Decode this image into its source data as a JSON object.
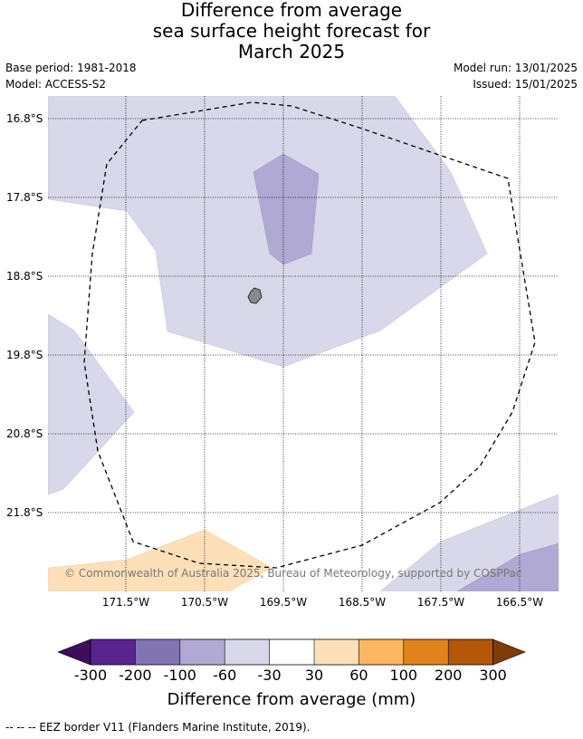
{
  "title": {
    "line1": "Difference from average",
    "line2": "sea surface height forecast for",
    "line3": "March 2025"
  },
  "meta": {
    "base_period": "Base period: 1981-2018",
    "model": "Model: ACCESS-S2",
    "model_run": "Model run: 13/01/2025",
    "issued": "Issued: 15/01/2025"
  },
  "map": {
    "lat_labels": [
      "16.8°S",
      "17.8°S",
      "18.8°S",
      "19.8°S",
      "20.8°S",
      "21.8°S"
    ],
    "lon_labels": [
      "171.5°W",
      "170.5°W",
      "169.5°W",
      "168.5°W",
      "167.5°W",
      "166.5°W"
    ],
    "copyright": "© Commonwealth of Australia 2025, Bureau of Meteorology, supported by COSPPac"
  },
  "colorbar": {
    "ticks": [
      "-300",
      "-200",
      "-100",
      "-60",
      "-30",
      "30",
      "60",
      "100",
      "200",
      "300"
    ],
    "colors": [
      "#3f0d5c",
      "#5a2390",
      "#8273b3",
      "#b0a9d3",
      "#d8d8ea",
      "#ffffff",
      "#fde0b8",
      "#fbb65f",
      "#e1821a",
      "#b45709",
      "#7f3b08"
    ],
    "label": "Difference from average (mm)"
  },
  "footer": {
    "eez_note": "--  --  -- EEZ border V11 (Flanders Marine Institute, 2019)."
  }
}
